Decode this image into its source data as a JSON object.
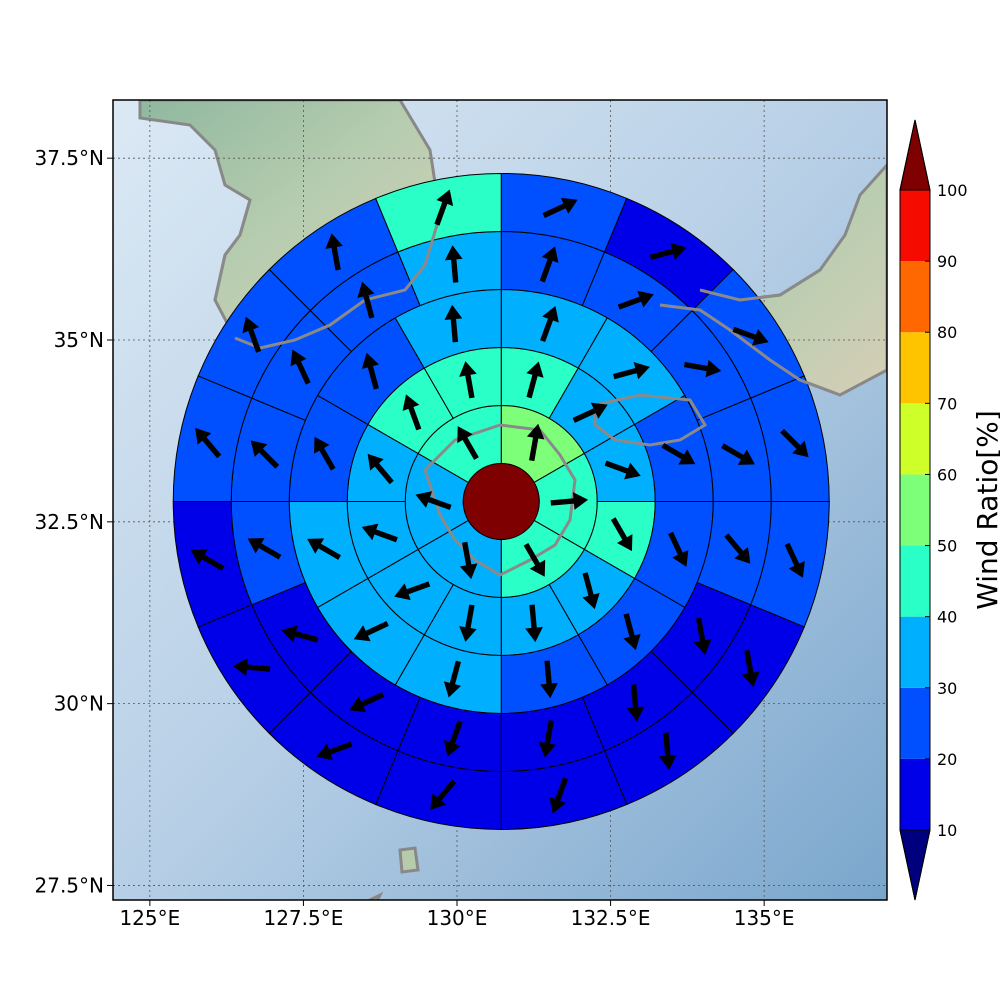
{
  "chart_data": {
    "type": "map",
    "title": "",
    "x_ticks": [
      125,
      127.5,
      130,
      132.5,
      135
    ],
    "x_tick_labels": [
      "125°E",
      "127.5°E",
      "130°E",
      "132.5°E",
      "135°E"
    ],
    "y_ticks": [
      27.5,
      30,
      32.5,
      35,
      37.5
    ],
    "y_tick_labels": [
      "27.5°N",
      "30°N",
      "32.5°N",
      "35°N",
      "37.5°N"
    ],
    "xlim": [
      124.4,
      137.0
    ],
    "ylim": [
      27.3,
      38.3
    ],
    "grid": true,
    "center": [
      130.72,
      32.78
    ],
    "colorbar": {
      "label": "Wind Ratio[%]",
      "ticks": [
        10,
        20,
        30,
        40,
        50,
        60,
        70,
        80,
        90,
        100
      ],
      "bins": [
        {
          "range": [
            0,
            10
          ],
          "color": "#00007f"
        },
        {
          "range": [
            10,
            20
          ],
          "color": "#0000e8"
        },
        {
          "range": [
            20,
            30
          ],
          "color": "#0050ff"
        },
        {
          "range": [
            30,
            40
          ],
          "color": "#00b0ff"
        },
        {
          "range": [
            40,
            50
          ],
          "color": "#29ffc6"
        },
        {
          "range": [
            50,
            60
          ],
          "color": "#7dff7a"
        },
        {
          "range": [
            60,
            70
          ],
          "color": "#ceff29"
        },
        {
          "range": [
            70,
            80
          ],
          "color": "#ffc400"
        },
        {
          "range": [
            80,
            90
          ],
          "color": "#ff6800"
        },
        {
          "range": [
            90,
            100
          ],
          "color": "#f50b00"
        },
        {
          "range": [
            100,
            110
          ],
          "color": "#7f0000"
        }
      ]
    },
    "center_ratio": 100,
    "rings": [
      {
        "ring": 1,
        "sectors": 6,
        "ratios": [
          55,
          45,
          45,
          35,
          35,
          45
        ],
        "dirs": [
          10,
          85,
          150,
          170,
          290,
          330
        ]
      },
      {
        "ring": 2,
        "sectors": 12,
        "ratios": [
          45,
          35,
          35,
          45,
          35,
          35,
          35,
          35,
          35,
          35,
          45,
          45
        ],
        "dirs": [
          15,
          65,
          110,
          150,
          165,
          175,
          190,
          250,
          290,
          320,
          340,
          350
        ]
      },
      {
        "ring": 3,
        "sectors": 12,
        "ratios": [
          35,
          35,
          25,
          25,
          25,
          25,
          35,
          35,
          35,
          25,
          25,
          35
        ],
        "dirs": [
          20,
          75,
          120,
          155,
          165,
          175,
          195,
          245,
          300,
          330,
          345,
          355
        ]
      },
      {
        "ring": 4,
        "sectors": 16,
        "ratios": [
          25,
          25,
          25,
          25,
          25,
          15,
          15,
          15,
          15,
          15,
          15,
          25,
          25,
          25,
          25,
          35
        ],
        "dirs": [
          20,
          70,
          100,
          120,
          140,
          170,
          175,
          190,
          200,
          245,
          285,
          300,
          315,
          335,
          345,
          355
        ]
      },
      {
        "ring": 5,
        "sectors": 16,
        "ratios": [
          25,
          15,
          25,
          25,
          25,
          15,
          15,
          15,
          15,
          15,
          15,
          15,
          25,
          25,
          25,
          45
        ],
        "dirs": [
          65,
          75,
          110,
          135,
          155,
          170,
          175,
          200,
          220,
          250,
          275,
          300,
          320,
          340,
          350,
          20
        ]
      }
    ]
  }
}
